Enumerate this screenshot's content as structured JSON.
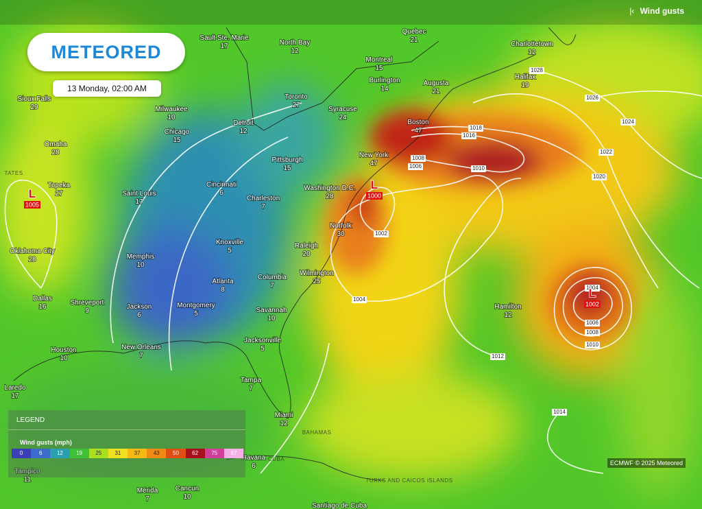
{
  "header": {
    "logo": "METEORED",
    "timestamp": "13 Monday, 02:00 AM",
    "layer": "Wind gusts"
  },
  "cities": [
    {
      "name": "Sault Ste. Marie",
      "gust": "17"
    },
    {
      "name": "North Bay",
      "gust": "12"
    },
    {
      "name": "Quebec",
      "gust": "21"
    },
    {
      "name": "Charlottetown",
      "gust": "12"
    },
    {
      "name": "Montreal",
      "gust": "15"
    },
    {
      "name": "Burlington",
      "gust": "14"
    },
    {
      "name": "Augusta",
      "gust": "21"
    },
    {
      "name": "Halifax",
      "gust": "19"
    },
    {
      "name": "Sioux Falls",
      "gust": "29"
    },
    {
      "name": "Toronto",
      "gust": "27"
    },
    {
      "name": "Milwaukee",
      "gust": "10"
    },
    {
      "name": "Syracuse",
      "gust": "24"
    },
    {
      "name": "Detroit",
      "gust": "12"
    },
    {
      "name": "Boston",
      "gust": "47"
    },
    {
      "name": "Chicago",
      "gust": "15"
    },
    {
      "name": "Omaha",
      "gust": "28"
    },
    {
      "name": "Pittsburgh",
      "gust": "15"
    },
    {
      "name": "New York",
      "gust": "47"
    },
    {
      "name": "Cincinnati",
      "gust": "6"
    },
    {
      "name": "Washington D.C.",
      "gust": "28"
    },
    {
      "name": "Topeka",
      "gust": "27"
    },
    {
      "name": "Saint Louis",
      "gust": "17"
    },
    {
      "name": "Charleston",
      "gust": "7"
    },
    {
      "name": "Norfolk",
      "gust": "30"
    },
    {
      "name": "Knoxville",
      "gust": "5"
    },
    {
      "name": "Raleigh",
      "gust": "20"
    },
    {
      "name": "Oklahoma City",
      "gust": "28"
    },
    {
      "name": "Memphis",
      "gust": "10"
    },
    {
      "name": "Wilmington",
      "gust": "25"
    },
    {
      "name": "Columbia",
      "gust": "7"
    },
    {
      "name": "Atlanta",
      "gust": "8"
    },
    {
      "name": "Dallas",
      "gust": "16"
    },
    {
      "name": "Shreveport",
      "gust": "9"
    },
    {
      "name": "Jackson",
      "gust": "6"
    },
    {
      "name": "Montgomery",
      "gust": "5"
    },
    {
      "name": "Hamilton",
      "gust": "12"
    },
    {
      "name": "Savannah",
      "gust": "10"
    },
    {
      "name": "Jacksonville",
      "gust": "5"
    },
    {
      "name": "Houston",
      "gust": "10"
    },
    {
      "name": "New Orleans",
      "gust": "7"
    },
    {
      "name": "Tampa",
      "gust": "7"
    },
    {
      "name": "Laredo",
      "gust": "17"
    },
    {
      "name": "Miami",
      "gust": "12"
    },
    {
      "name": "Havana",
      "gust": "6"
    },
    {
      "name": "Tampico",
      "gust": "11"
    },
    {
      "name": "Mérida",
      "gust": "7"
    },
    {
      "name": "Cancun",
      "gust": "10"
    }
  ],
  "isobar_labels": [
    "1028",
    "1026",
    "1024",
    "1022",
    "1020",
    "1018",
    "1016",
    "1008",
    "1006",
    "1010",
    "1002",
    "1004",
    "1004",
    "1006",
    "1008",
    "1010",
    "1012",
    "1014"
  ],
  "lows": [
    {
      "symbol": "L",
      "pressure": "1005"
    },
    {
      "symbol": "L",
      "pressure": "1000"
    },
    {
      "symbol": "L",
      "pressure": "1002"
    }
  ],
  "regions": [
    "TATES",
    "BAHAMAS",
    "CUBA",
    "TURKS AND CAICOS ISLANDS"
  ],
  "footer_city": "Santiago de Cuba",
  "legend": {
    "title": "LEGEND",
    "subtitle": "Wind gusts (mph)",
    "scale": [
      {
        "label": "0",
        "color": "#3b3fb8"
      },
      {
        "label": "6",
        "color": "#3b6ccc"
      },
      {
        "label": "12",
        "color": "#2a9fb2"
      },
      {
        "label": "19",
        "color": "#3fbf3a"
      },
      {
        "label": "25",
        "color": "#a8e020"
      },
      {
        "label": "31",
        "color": "#f0e020"
      },
      {
        "label": "37",
        "color": "#f6b812"
      },
      {
        "label": "43",
        "color": "#ef8a12"
      },
      {
        "label": "50",
        "color": "#e04e14"
      },
      {
        "label": "62",
        "color": "#a8101c"
      },
      {
        "label": "75",
        "color": "#d04098"
      },
      {
        "label": "87",
        "color": "#f6b0e6"
      }
    ]
  },
  "footer": {
    "attribution": "ECMWF © 2025 Meteored"
  }
}
